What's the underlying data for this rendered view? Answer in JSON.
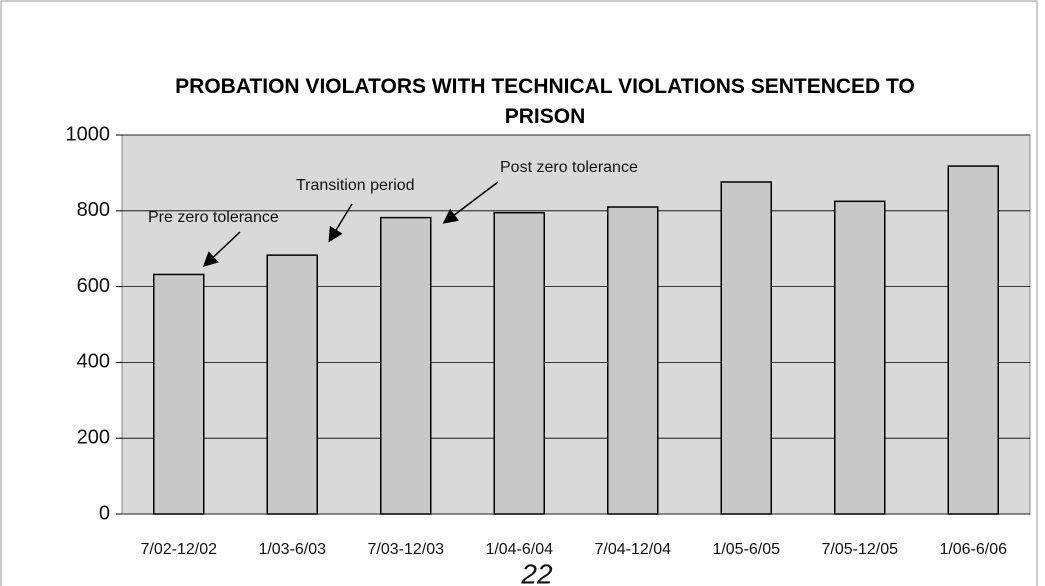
{
  "chart_data": {
    "type": "bar",
    "title": "PROBATION VIOLATORS WITH TECHNICAL VIOLATIONS SENTENCED TO PRISON",
    "categories": [
      "7/02-12/02",
      "1/03-6/03",
      "7/03-12/03",
      "1/04-6/04",
      "7/04-12/04",
      "1/05-6/05",
      "7/05-12/05",
      "1/06-6/06"
    ],
    "values": [
      632,
      683,
      782,
      795,
      810,
      876,
      825,
      918
    ],
    "color": "#c8c8c8",
    "ylim": [
      0,
      1000
    ],
    "yticks": [
      0,
      200,
      400,
      600,
      800,
      1000
    ],
    "grid": true,
    "annotations": [
      "Pre zero tolerance",
      "Transition period",
      "Post zero tolerance"
    ]
  },
  "page_number": "22"
}
